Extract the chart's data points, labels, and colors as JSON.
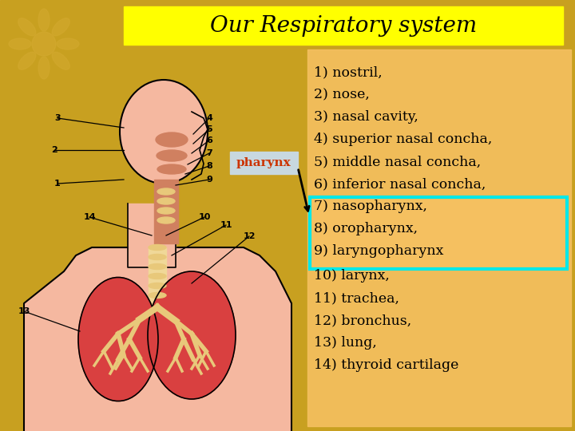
{
  "title": "Our Respiratory system",
  "title_bg": "#ffff00",
  "bg_color": "#c8a020",
  "right_panel_bg": "#f5c060",
  "pharynx_label": "pharynx",
  "pharynx_label_color": "#cc3300",
  "pharynx_box_bg": "#c8d8e0",
  "cyan_box_color": "#00e8e8",
  "items_normal1": [
    "1) nostril,",
    "2) nose,",
    "3) nasal cavity,",
    "4) superior nasal concha,",
    "5) middle nasal concha,",
    "6) inferior nasal concha,"
  ],
  "items_highlighted": [
    "7) nasopharynx,",
    "8) oropharynx,",
    "9) laryngopharynx"
  ],
  "items_normal2": [
    "10) larynx,",
    "11) trachea,",
    "12) bronchus,",
    "13) lung,",
    "14) thyroid cartilage"
  ],
  "font_size_title": 20,
  "font_size_items": 12.5,
  "body_color": "#f5b8a0",
  "lung_color": "#d94040",
  "trachea_color": "#e8c87a",
  "nose_color": "#d08060"
}
